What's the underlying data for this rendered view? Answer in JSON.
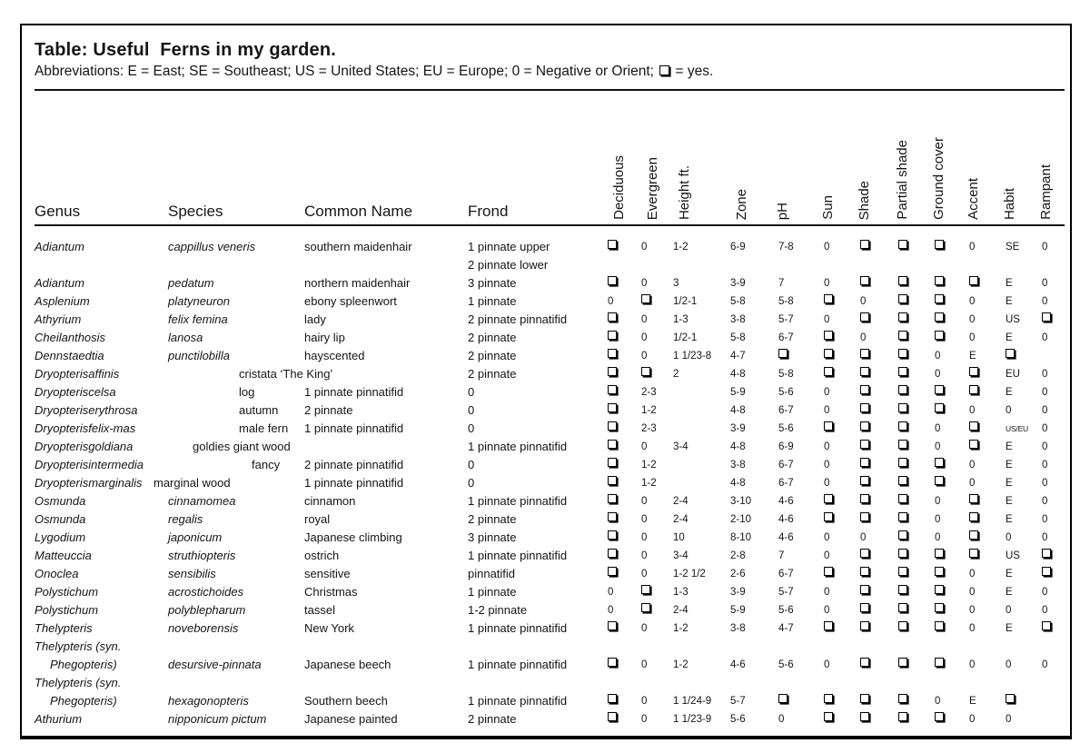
{
  "title": "Table: Useful  Ferns in my garden.",
  "abbreviations": {
    "before": "Abbreviations: E = East; SE = Southeast; US = United States; EU = Europe; 0 = Negative or Orient; ",
    "checkbox_means": "yes",
    "after": " = yes."
  },
  "table": {
    "text_headers": [
      "Genus",
      "Species",
      "Common Name",
      "Frond"
    ],
    "rotated_headers": [
      "Deciduous",
      "Evergreen",
      "Height ft.",
      "Zone",
      "pH",
      "Sun",
      "Shade",
      "Partial shade",
      "Ground cover",
      "Accent",
      "Habit",
      "Rampant"
    ],
    "checkbox_symbol": "□",
    "lines": [
      {
        "genus": "Adiantum",
        "species": "cappillus veneris",
        "species_italic": true,
        "common": "southern maidenhair",
        "frond": "1 pinnate upper",
        "stats": [
          "□",
          "0",
          "1-2",
          "6-9",
          "7-8",
          "0",
          "□",
          "□",
          "□",
          "0",
          "SE",
          "0"
        ]
      },
      {
        "frond": "2 pinnate lower"
      },
      {
        "genus": "Adiantum",
        "species": "pedatum",
        "species_italic": true,
        "common": "northern maidenhair",
        "frond": "3 pinnate",
        "stats": [
          "□",
          "0",
          "3",
          "3-9",
          "7",
          "0",
          "□",
          "□",
          "□",
          "□",
          "E",
          "0"
        ]
      },
      {
        "genus": "Asplenium",
        "species": "platyneuron",
        "species_italic": true,
        "common": "ebony spleenwort",
        "frond": "1 pinnate",
        "stats": [
          "0",
          "□",
          "1/2-1",
          "5-8",
          "5-8",
          "□",
          "0",
          "□",
          "□",
          "0",
          "E",
          "0"
        ]
      },
      {
        "genus": "Athyrium",
        "species": "felix femina",
        "species_italic": true,
        "common": "lady",
        "frond": "2 pinnate pinnatifid",
        "stats": [
          "□",
          "0",
          "1-3",
          "3-8",
          "5-7",
          "0",
          "□",
          "□",
          "□",
          "0",
          "US",
          "□"
        ]
      },
      {
        "genus": "Cheilanthosis",
        "species": "lanosa",
        "species_italic": true,
        "common": "hairy lip",
        "frond": "2 pinnate",
        "stats": [
          "□",
          "0",
          "1/2-1",
          "5-8",
          "6-7",
          "□",
          "0",
          "□",
          "□",
          "0",
          "E",
          "0"
        ]
      },
      {
        "genus": "Dennstaedtia",
        "species": "punctilobilla",
        "species_italic": true,
        "common": "hayscented",
        "frond": "2 pinnate",
        "stats": [
          "□",
          "0",
          "1 1/23-8",
          "4-7",
          "□",
          "□",
          "□",
          "□",
          "0",
          "E",
          "□",
          ""
        ]
      },
      {
        "genus": "Dryopterisaffinis",
        "species": "cristata ‘The King’",
        "species_shift": "md",
        "common": "",
        "frond": "2 pinnate",
        "stats": [
          "□",
          "□",
          "2",
          "4-8",
          "5-8",
          "□",
          "□",
          "□",
          "0",
          "□",
          "EU",
          "0"
        ]
      },
      {
        "genus": "Dryopteriscelsa",
        "species": "log",
        "species_shift": "md",
        "common": "1 pinnate pinnatifid",
        "frond": "0",
        "stats": [
          "□",
          "2-3",
          "",
          "5-9",
          "5-6",
          "0",
          "□",
          "□",
          "□",
          "□",
          "E",
          "0"
        ]
      },
      {
        "genus": "Dryopteriserythrosa",
        "species": "autumn",
        "species_shift": "md",
        "common": "2 pinnate",
        "frond": "0",
        "stats": [
          "□",
          "1-2",
          "",
          "4-8",
          "6-7",
          "0",
          "□",
          "□",
          "□",
          "0",
          "0",
          "0"
        ]
      },
      {
        "genus": "Dryopterisfelix-mas",
        "species": "male fern",
        "species_shift": "md",
        "common": "1 pinnate pinnatifid",
        "frond": "0",
        "stats": [
          "□",
          "2-3",
          "",
          "3-9",
          "5-6",
          "□",
          "□",
          "□",
          "0",
          "□",
          "US/EU",
          "0"
        ]
      },
      {
        "genus": "Dryopterisgoldiana",
        "species": "goldies giant wood",
        "species_shift": "sm",
        "common": "",
        "frond": "1 pinnate pinnatifid",
        "stats": [
          "□",
          "0",
          "3-4",
          "4-8",
          "6-9",
          "0",
          "□",
          "□",
          "0",
          "□",
          "E",
          "0"
        ]
      },
      {
        "genus": "Dryopterisintermedia",
        "species": "fancy",
        "species_shift": "lg",
        "common": "2 pinnate pinnatifid",
        "frond": "0",
        "stats": [
          "□",
          "1-2",
          "",
          "3-8",
          "6-7",
          "0",
          "□",
          "□",
          "□",
          "0",
          "E",
          "0"
        ]
      },
      {
        "genus": "Dryopterismarginalis",
        "species": "marginal wood",
        "species_shift": "neg",
        "common": "1 pinnate pinnatifid",
        "frond": "0",
        "stats": [
          "□",
          "1-2",
          "",
          "4-8",
          "6-7",
          "0",
          "□",
          "□",
          "□",
          "0",
          "E",
          "0"
        ]
      },
      {
        "genus": "Osmunda",
        "species": "cinnamomea",
        "species_italic": true,
        "common": "cinnamon",
        "frond": "1 pinnate pinnatifid",
        "stats": [
          "□",
          "0",
          "2-4",
          "3-10",
          "4-6",
          "□",
          "□",
          "□",
          "0",
          "□",
          "E",
          "0"
        ]
      },
      {
        "genus": "Osmunda",
        "species": "regalis",
        "species_italic": true,
        "common": "royal",
        "frond": "2 pinnate",
        "stats": [
          "□",
          "0",
          "2-4",
          "2-10",
          "4-6",
          "□",
          "□",
          "□",
          "0",
          "□",
          "E",
          "0"
        ]
      },
      {
        "genus": "Lygodium",
        "species": "japonicum",
        "species_italic": true,
        "common": "Japanese climbing",
        "frond": "3 pinnate",
        "stats": [
          "□",
          "0",
          "10",
          "8-10",
          "4-6",
          "0",
          "0",
          "□",
          "0",
          "□",
          "0",
          "0"
        ]
      },
      {
        "genus": "Matteuccia",
        "species": "struthiopteris",
        "species_italic": true,
        "common": "ostrich",
        "frond": "1 pinnate pinnatifid",
        "stats": [
          "□",
          "0",
          "3-4",
          "2-8",
          "7",
          "0",
          "□",
          "□",
          "□",
          "□",
          "US",
          "□"
        ]
      },
      {
        "genus": "Onoclea",
        "species": "sensibilis",
        "species_italic": true,
        "common": "sensitive",
        "frond": "pinnatifid",
        "stats": [
          "□",
          "0",
          "1-2 1/2",
          "2-6",
          "6-7",
          "□",
          "□",
          "□",
          "□",
          "0",
          "E",
          "□"
        ]
      },
      {
        "genus": "Polystichum",
        "species": "acrostichoides",
        "species_italic": true,
        "common": "Christmas",
        "frond": "1 pinnate",
        "stats": [
          "0",
          "□",
          "1-3",
          "3-9",
          "5-7",
          "0",
          "□",
          "□",
          "□",
          "0",
          "E",
          "0"
        ]
      },
      {
        "genus": "Polystichum",
        "species": "polyblepharum",
        "species_italic": true,
        "common": "tassel",
        "frond": "1-2 pinnate",
        "stats": [
          "0",
          "□",
          "2-4",
          "5-9",
          "5-6",
          "0",
          "□",
          "□",
          "□",
          "0",
          "0",
          "0"
        ]
      },
      {
        "genus": "Thelypteris",
        "species": "noveborensis",
        "species_italic": true,
        "common": "New York",
        "frond": "1 pinnate pinnatifid",
        "stats": [
          "□",
          "0",
          "1-2",
          "3-8",
          "4-7",
          "□",
          "□",
          "□",
          "□",
          "0",
          "E",
          "□"
        ]
      },
      {
        "genus": "Thelypteris (syn."
      },
      {
        "genus": "Phegopteris)",
        "genus_indent": true,
        "species": "desursive-pinnata",
        "species_italic": true,
        "common": "Japanese beech",
        "frond": "1 pinnate pinnatifid",
        "stats": [
          "□",
          "0",
          "1-2",
          "4-6",
          "5-6",
          "0",
          "□",
          "□",
          "□",
          "0",
          "0",
          "0"
        ]
      },
      {
        "genus": "Thelypteris (syn."
      },
      {
        "genus": "Phegopteris)",
        "genus_indent": true,
        "species": "hexagonopteris",
        "species_italic": true,
        "common": "Southern beech",
        "frond": "1 pinnate pinnatifid",
        "stats": [
          "□",
          "0",
          "1 1/24-9",
          "5-7",
          "□",
          "□",
          "□",
          "□",
          "0",
          "E",
          "□",
          ""
        ]
      },
      {
        "genus": "Athurium",
        "species": "nipponicum pictum",
        "species_italic": true,
        "common": "Japanese painted",
        "frond": "2 pinnate",
        "stats": [
          "□",
          "0",
          "1 1/23-9",
          "5-6",
          "0",
          "□",
          "□",
          "□",
          "□",
          "0",
          "0",
          ""
        ]
      }
    ]
  }
}
